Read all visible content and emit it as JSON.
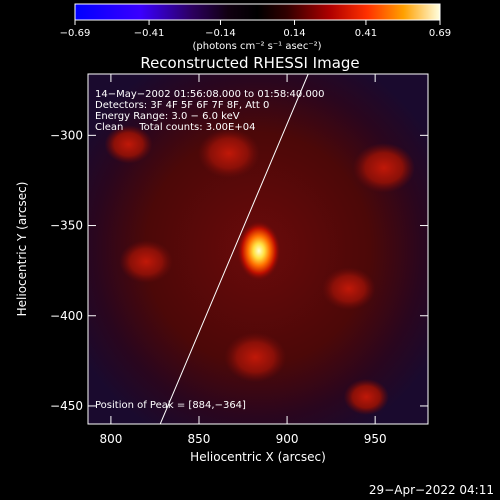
{
  "chart_data": {
    "type": "heatmap",
    "title": "Reconstructed RHESSI Image",
    "xlabel": "Heliocentric X (arcsec)",
    "ylabel": "Heliocentric Y (arcsec)",
    "xlim": [
      787,
      980
    ],
    "ylim": [
      -460,
      -266
    ],
    "x_ticks": [
      800,
      850,
      900,
      950
    ],
    "x_tick_labels": [
      "800",
      "850",
      "900",
      "950"
    ],
    "y_ticks": [
      -300,
      -350,
      -400,
      -450
    ],
    "y_tick_labels": [
      "−300",
      "−350",
      "−400",
      "−450"
    ],
    "colorbar": {
      "range": [
        -0.69,
        0.69
      ],
      "colormap": "rhessi",
      "ticks": [
        -0.69,
        -0.41,
        -0.14,
        0.14,
        0.41,
        0.69
      ],
      "tick_labels": [
        "−0.69",
        "−0.41",
        "−0.14",
        "0.14",
        "0.41",
        "0.69"
      ],
      "unit_label": "(photons cm⁻² s⁻¹ asec⁻²)"
    },
    "annotations": [
      "14−May−2002 01:56:08.000 to 01:58:40.000",
      "Detectors: 3F 4F 5F 6F 7F 8F, Att 0",
      "Energy Range: 3.0 − 6.0 keV",
      "Clean     Total counts: 3.00E+04"
    ],
    "peak_label": "Position of Peak = [884,−364]",
    "peak": {
      "x": 884,
      "y": -364,
      "value": 0.69
    },
    "secondary_sources": [
      {
        "x": 867,
        "y": -310,
        "value": 0.3
      },
      {
        "x": 955,
        "y": -318,
        "value": 0.3
      },
      {
        "x": 882,
        "y": -423,
        "value": 0.3
      },
      {
        "x": 820,
        "y": -370,
        "value": 0.24
      },
      {
        "x": 935,
        "y": -385,
        "value": 0.24
      },
      {
        "x": 810,
        "y": -305,
        "value": 0.2
      },
      {
        "x": 945,
        "y": -445,
        "value": 0.18
      }
    ],
    "limb_line": {
      "x_start": 828,
      "y_start": -460,
      "x_end": 912,
      "y_end": -266
    }
  },
  "footer": {
    "timestamp": "29−Apr−2022 04:11"
  }
}
